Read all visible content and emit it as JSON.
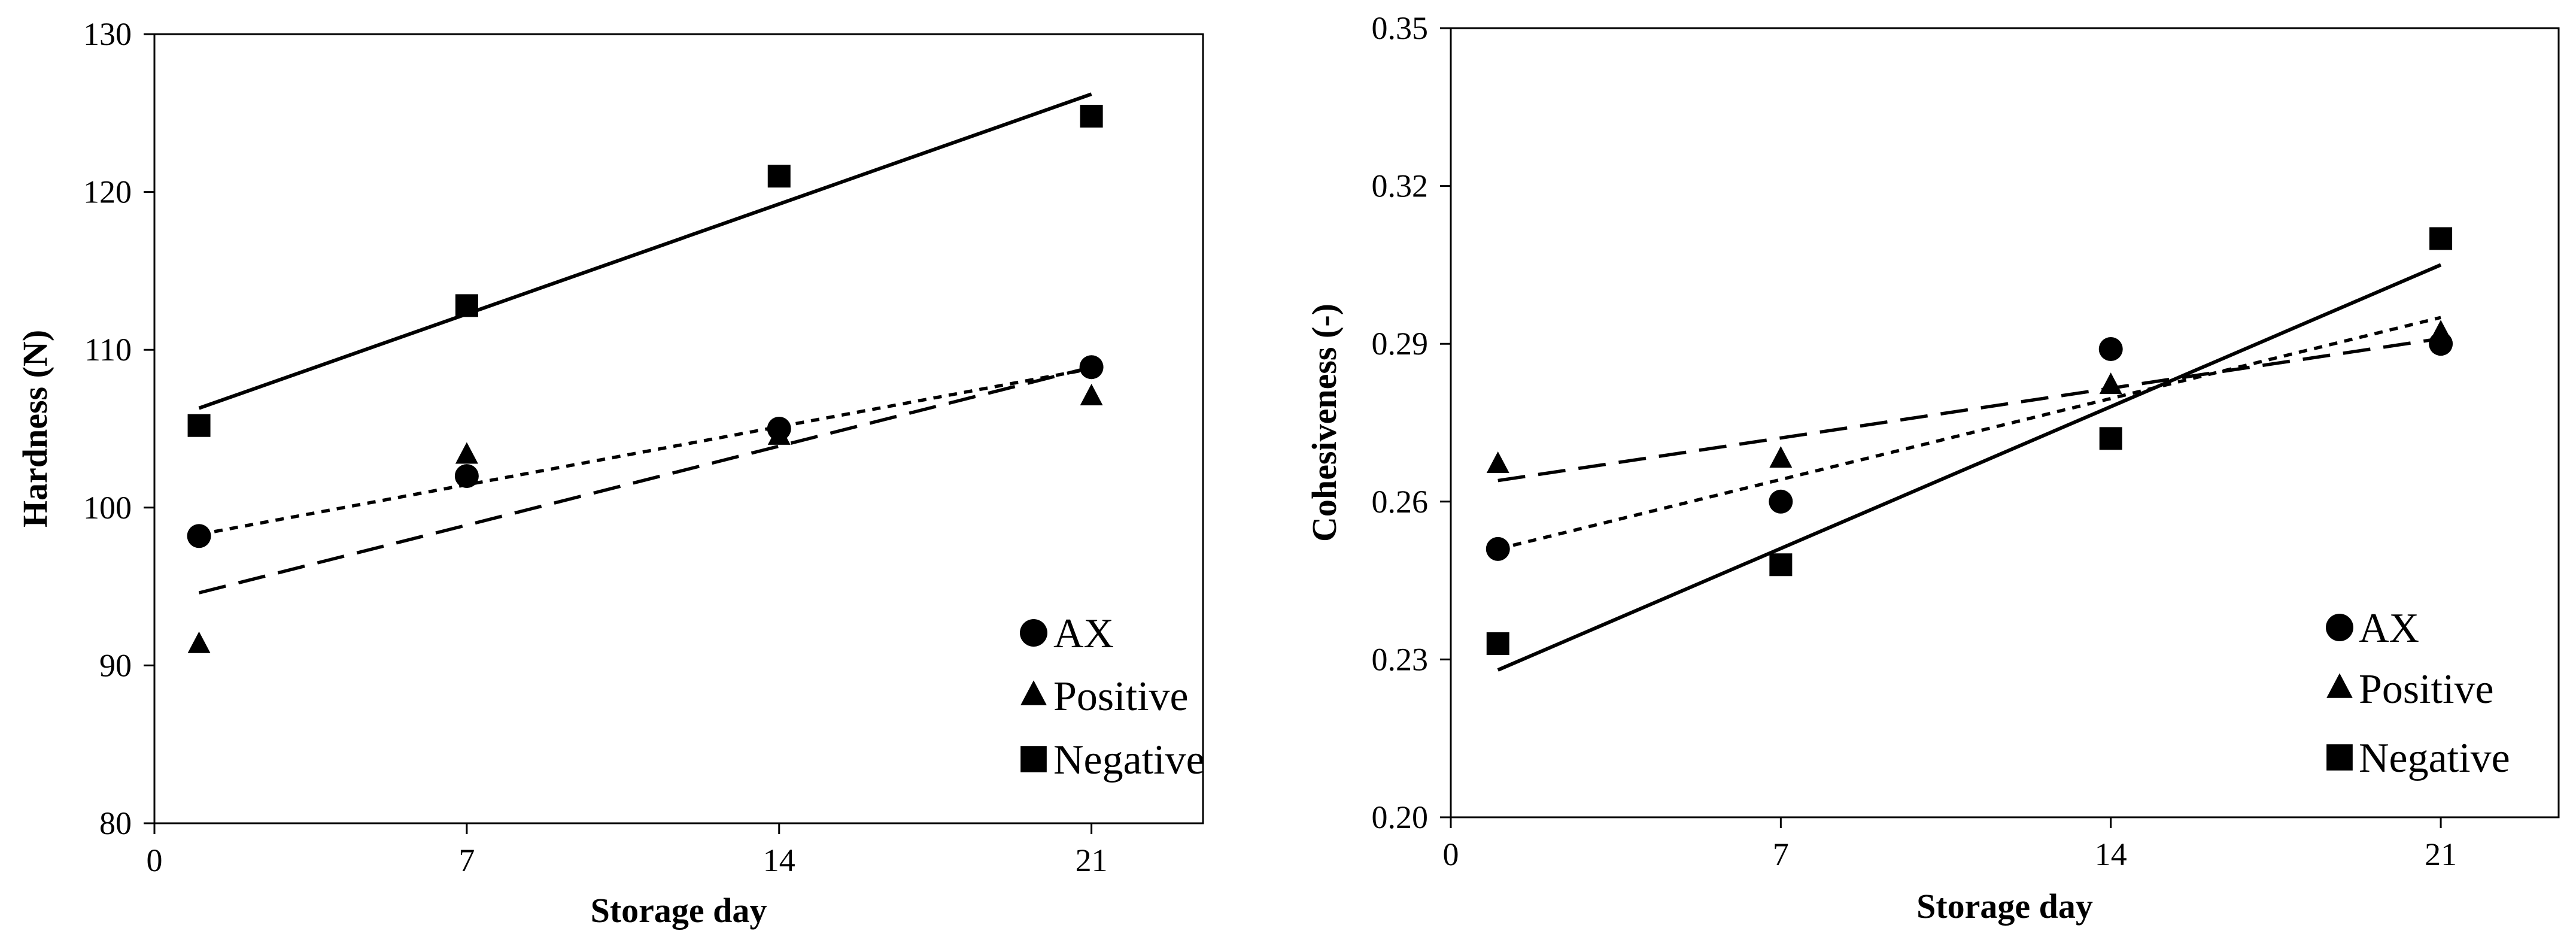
{
  "chart_data": [
    {
      "type": "scatter",
      "title": "",
      "xlabel": "Storage day",
      "ylabel": "Hardness (N)",
      "xlim": [
        0,
        23.5
      ],
      "ylim": [
        80,
        130
      ],
      "xticks": [
        0,
        7,
        14,
        21
      ],
      "yticks": [
        80,
        90,
        100,
        110,
        120,
        130
      ],
      "tick_decimals": 0,
      "legend_position": "bottom-right",
      "series": [
        {
          "name": "AX",
          "marker": "circle",
          "trend": "dotted",
          "x": [
            1,
            7,
            14,
            21
          ],
          "y": [
            98.2,
            102.0,
            105.0,
            108.9
          ],
          "trend_y": [
            98.3,
            108.8
          ]
        },
        {
          "name": "Positive",
          "marker": "triangle",
          "trend": "dashed",
          "x": [
            1,
            7,
            14,
            21
          ],
          "y": [
            91.3,
            103.3,
            104.5,
            107.0
          ],
          "trend_y": [
            94.6,
            108.9
          ]
        },
        {
          "name": "Negative",
          "marker": "square",
          "trend": "solid",
          "x": [
            1,
            7,
            14,
            21
          ],
          "y": [
            105.2,
            112.8,
            121.0,
            124.8
          ],
          "trend_y": [
            106.3,
            126.2
          ]
        }
      ]
    },
    {
      "type": "scatter",
      "title": "",
      "xlabel": "Storage day",
      "ylabel": "Cohesiveness (-)",
      "xlim": [
        0,
        23.5
      ],
      "ylim": [
        0.2,
        0.35
      ],
      "xticks": [
        0,
        7,
        14,
        21
      ],
      "yticks": [
        0.2,
        0.23,
        0.26,
        0.29,
        0.32,
        0.35
      ],
      "tick_decimals": 2,
      "legend_position": "bottom-right",
      "series": [
        {
          "name": "AX",
          "marker": "circle",
          "trend": "dotted",
          "x": [
            1,
            7,
            14,
            21
          ],
          "y": [
            0.251,
            0.26,
            0.289,
            0.29
          ],
          "trend_y": [
            0.251,
            0.295
          ]
        },
        {
          "name": "Positive",
          "marker": "triangle",
          "trend": "dashed",
          "x": [
            1,
            7,
            14,
            21
          ],
          "y": [
            0.267,
            0.268,
            0.282,
            0.292
          ],
          "trend_y": [
            0.264,
            0.291
          ]
        },
        {
          "name": "Negative",
          "marker": "square",
          "trend": "solid",
          "x": [
            1,
            7,
            14,
            21
          ],
          "y": [
            0.233,
            0.248,
            0.272,
            0.31
          ],
          "trend_y": [
            0.228,
            0.305
          ]
        }
      ]
    }
  ]
}
